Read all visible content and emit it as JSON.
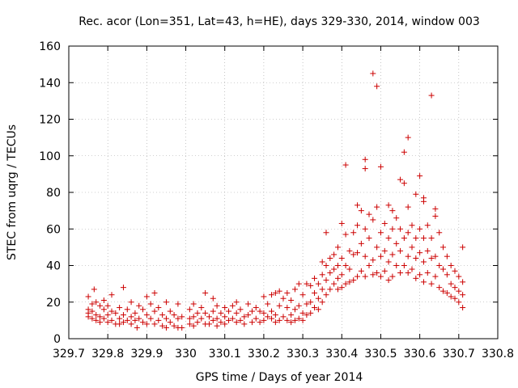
{
  "chart_data": {
    "type": "scatter",
    "title": "Rec. acor (Lon=351, Lat=43, h=HE), days 329-330, 2014, window 003",
    "xlabel": "GPS time / Days of year 2014",
    "ylabel": "STEC from uqrg / TECUs",
    "xlim": [
      329.7,
      330.8
    ],
    "ylim": [
      0,
      160
    ],
    "xticks": [
      329.7,
      329.8,
      329.9,
      330,
      330.1,
      330.2,
      330.3,
      330.4,
      330.5,
      330.6,
      330.7,
      330.8
    ],
    "xtick_labels": [
      "329.7",
      "329.8",
      "329.9",
      "330",
      "330.1",
      "330.2",
      "330.3",
      "330.4",
      "330.5",
      "330.6",
      "330.7",
      "330.8"
    ],
    "yticks": [
      0,
      20,
      40,
      60,
      80,
      100,
      120,
      140,
      160
    ],
    "ytick_labels": [
      "0",
      "20",
      "40",
      "60",
      "80",
      "100",
      "120",
      "140",
      "160"
    ],
    "grid": true,
    "marker": "+",
    "color": "#cc0000",
    "series": [
      {
        "name": "STEC",
        "points": [
          [
            329.75,
            23
          ],
          [
            329.75,
            16
          ],
          [
            329.75,
            14
          ],
          [
            329.75,
            12
          ],
          [
            329.76,
            19
          ],
          [
            329.76,
            15
          ],
          [
            329.76,
            11
          ],
          [
            329.765,
            27
          ],
          [
            329.77,
            20
          ],
          [
            329.77,
            13
          ],
          [
            329.77,
            10
          ],
          [
            329.78,
            18
          ],
          [
            329.78,
            12
          ],
          [
            329.78,
            9
          ],
          [
            329.79,
            21
          ],
          [
            329.79,
            16
          ],
          [
            329.79,
            11
          ],
          [
            329.8,
            18
          ],
          [
            329.8,
            13
          ],
          [
            329.8,
            9
          ],
          [
            329.81,
            24
          ],
          [
            329.81,
            15
          ],
          [
            329.81,
            10
          ],
          [
            329.82,
            14
          ],
          [
            329.82,
            8
          ],
          [
            329.83,
            17
          ],
          [
            329.83,
            11
          ],
          [
            329.83,
            8
          ],
          [
            329.84,
            28
          ],
          [
            329.84,
            13
          ],
          [
            329.84,
            9
          ],
          [
            329.85,
            16
          ],
          [
            329.85,
            10
          ],
          [
            329.86,
            20
          ],
          [
            329.86,
            12
          ],
          [
            329.86,
            8
          ],
          [
            329.87,
            14
          ],
          [
            329.87,
            10
          ],
          [
            329.875,
            6
          ],
          [
            329.88,
            18
          ],
          [
            329.88,
            11
          ],
          [
            329.89,
            16
          ],
          [
            329.89,
            9
          ],
          [
            329.9,
            23
          ],
          [
            329.9,
            13
          ],
          [
            329.9,
            8
          ],
          [
            329.91,
            19
          ],
          [
            329.91,
            11
          ],
          [
            329.92,
            25
          ],
          [
            329.92,
            15
          ],
          [
            329.92,
            8
          ],
          [
            329.93,
            17
          ],
          [
            329.93,
            10
          ],
          [
            329.94,
            13
          ],
          [
            329.94,
            7
          ],
          [
            329.95,
            20
          ],
          [
            329.95,
            11
          ],
          [
            329.95,
            6
          ],
          [
            329.96,
            15
          ],
          [
            329.96,
            9
          ],
          [
            329.97,
            13
          ],
          [
            329.97,
            7
          ],
          [
            329.98,
            19
          ],
          [
            329.98,
            11
          ],
          [
            329.98,
            6
          ],
          [
            329.99,
            12
          ],
          [
            329.99,
            6
          ],
          [
            330.01,
            16
          ],
          [
            330.01,
            11
          ],
          [
            330.01,
            8
          ],
          [
            330.02,
            19
          ],
          [
            330.02,
            12
          ],
          [
            330.02,
            7
          ],
          [
            330.03,
            14
          ],
          [
            330.03,
            9
          ],
          [
            330.04,
            17
          ],
          [
            330.04,
            11
          ],
          [
            330.05,
            25
          ],
          [
            330.05,
            14
          ],
          [
            330.05,
            8
          ],
          [
            330.06,
            12
          ],
          [
            330.06,
            8
          ],
          [
            330.07,
            22
          ],
          [
            330.07,
            15
          ],
          [
            330.07,
            10
          ],
          [
            330.08,
            18
          ],
          [
            330.08,
            11
          ],
          [
            330.08,
            7
          ],
          [
            330.09,
            14
          ],
          [
            330.09,
            9
          ],
          [
            330.1,
            17
          ],
          [
            330.1,
            12
          ],
          [
            330.1,
            8
          ],
          [
            330.11,
            15
          ],
          [
            330.11,
            10
          ],
          [
            330.12,
            18
          ],
          [
            330.12,
            11
          ],
          [
            330.13,
            20
          ],
          [
            330.13,
            14
          ],
          [
            330.13,
            9
          ],
          [
            330.14,
            16
          ],
          [
            330.14,
            10
          ],
          [
            330.15,
            12
          ],
          [
            330.15,
            8
          ],
          [
            330.16,
            19
          ],
          [
            330.16,
            13
          ],
          [
            330.17,
            15
          ],
          [
            330.17,
            9
          ],
          [
            330.18,
            17
          ],
          [
            330.18,
            11
          ],
          [
            330.19,
            15
          ],
          [
            330.19,
            9
          ],
          [
            330.2,
            23
          ],
          [
            330.2,
            14
          ],
          [
            330.2,
            10
          ],
          [
            330.21,
            19
          ],
          [
            330.21,
            12
          ],
          [
            330.22,
            24
          ],
          [
            330.22,
            15
          ],
          [
            330.22,
            11
          ],
          [
            330.23,
            25
          ],
          [
            330.23,
            13
          ],
          [
            330.23,
            9
          ],
          [
            330.24,
            26
          ],
          [
            330.24,
            18
          ],
          [
            330.24,
            10
          ],
          [
            330.25,
            22
          ],
          [
            330.25,
            12
          ],
          [
            330.26,
            25
          ],
          [
            330.26,
            17
          ],
          [
            330.26,
            10
          ],
          [
            330.27,
            21
          ],
          [
            330.27,
            13
          ],
          [
            330.27,
            9
          ],
          [
            330.28,
            27
          ],
          [
            330.28,
            16
          ],
          [
            330.28,
            10
          ],
          [
            330.29,
            30
          ],
          [
            330.29,
            18
          ],
          [
            330.29,
            11
          ],
          [
            330.3,
            24
          ],
          [
            330.3,
            14
          ],
          [
            330.3,
            10
          ],
          [
            330.31,
            30
          ],
          [
            330.31,
            19
          ],
          [
            330.31,
            13
          ],
          [
            330.32,
            29
          ],
          [
            330.32,
            20
          ],
          [
            330.32,
            14
          ],
          [
            330.33,
            33
          ],
          [
            330.33,
            25
          ],
          [
            330.33,
            17
          ],
          [
            330.34,
            30
          ],
          [
            330.34,
            22
          ],
          [
            330.34,
            16
          ],
          [
            330.35,
            42
          ],
          [
            330.35,
            35
          ],
          [
            330.35,
            27
          ],
          [
            330.35,
            20
          ],
          [
            330.36,
            58
          ],
          [
            330.36,
            40
          ],
          [
            330.36,
            32
          ],
          [
            330.36,
            24
          ],
          [
            330.37,
            44
          ],
          [
            330.37,
            36
          ],
          [
            330.37,
            27
          ],
          [
            330.38,
            46
          ],
          [
            330.38,
            38
          ],
          [
            330.38,
            30
          ],
          [
            330.39,
            50
          ],
          [
            330.39,
            40
          ],
          [
            330.39,
            33
          ],
          [
            330.39,
            27
          ],
          [
            330.4,
            63
          ],
          [
            330.4,
            44
          ],
          [
            330.4,
            35
          ],
          [
            330.4,
            28
          ],
          [
            330.41,
            95
          ],
          [
            330.41,
            57
          ],
          [
            330.41,
            40
          ],
          [
            330.41,
            30
          ],
          [
            330.42,
            48
          ],
          [
            330.42,
            38
          ],
          [
            330.42,
            31
          ],
          [
            330.43,
            58
          ],
          [
            330.43,
            46
          ],
          [
            330.43,
            32
          ],
          [
            330.44,
            73
          ],
          [
            330.44,
            62
          ],
          [
            330.44,
            47
          ],
          [
            330.44,
            34
          ],
          [
            330.45,
            70
          ],
          [
            330.45,
            52
          ],
          [
            330.45,
            37
          ],
          [
            330.46,
            98
          ],
          [
            330.46,
            93
          ],
          [
            330.46,
            60
          ],
          [
            330.46,
            45
          ],
          [
            330.46,
            34
          ],
          [
            330.47,
            68
          ],
          [
            330.47,
            55
          ],
          [
            330.47,
            40
          ],
          [
            330.48,
            145
          ],
          [
            330.48,
            65
          ],
          [
            330.48,
            43
          ],
          [
            330.48,
            35
          ],
          [
            330.49,
            138
          ],
          [
            330.49,
            72
          ],
          [
            330.49,
            50
          ],
          [
            330.49,
            36
          ],
          [
            330.5,
            94
          ],
          [
            330.5,
            58
          ],
          [
            330.5,
            45
          ],
          [
            330.5,
            34
          ],
          [
            330.51,
            63
          ],
          [
            330.51,
            48
          ],
          [
            330.51,
            37
          ],
          [
            330.52,
            73
          ],
          [
            330.52,
            55
          ],
          [
            330.52,
            42
          ],
          [
            330.52,
            32
          ],
          [
            330.53,
            70
          ],
          [
            330.53,
            60
          ],
          [
            330.53,
            46
          ],
          [
            330.53,
            34
          ],
          [
            330.54,
            66
          ],
          [
            330.54,
            52
          ],
          [
            330.54,
            40
          ],
          [
            330.55,
            87
          ],
          [
            330.55,
            60
          ],
          [
            330.55,
            48
          ],
          [
            330.55,
            36
          ],
          [
            330.56,
            85
          ],
          [
            330.56,
            102
          ],
          [
            330.56,
            55
          ],
          [
            330.56,
            40
          ],
          [
            330.57,
            110
          ],
          [
            330.57,
            72
          ],
          [
            330.57,
            58
          ],
          [
            330.57,
            45
          ],
          [
            330.57,
            36
          ],
          [
            330.58,
            62
          ],
          [
            330.58,
            50
          ],
          [
            330.58,
            38
          ],
          [
            330.59,
            79
          ],
          [
            330.59,
            55
          ],
          [
            330.59,
            44
          ],
          [
            330.59,
            33
          ],
          [
            330.6,
            89
          ],
          [
            330.6,
            60
          ],
          [
            330.6,
            47
          ],
          [
            330.6,
            35
          ],
          [
            330.61,
            77
          ],
          [
            330.61,
            75
          ],
          [
            330.61,
            55
          ],
          [
            330.61,
            42
          ],
          [
            330.61,
            31
          ],
          [
            330.62,
            62
          ],
          [
            330.62,
            48
          ],
          [
            330.62,
            36
          ],
          [
            330.63,
            133
          ],
          [
            330.63,
            55
          ],
          [
            330.63,
            44
          ],
          [
            330.63,
            30
          ],
          [
            330.64,
            71
          ],
          [
            330.64,
            67
          ],
          [
            330.64,
            45
          ],
          [
            330.64,
            34
          ],
          [
            330.65,
            58
          ],
          [
            330.65,
            40
          ],
          [
            330.65,
            28
          ],
          [
            330.66,
            50
          ],
          [
            330.66,
            38
          ],
          [
            330.66,
            26
          ],
          [
            330.67,
            45
          ],
          [
            330.67,
            35
          ],
          [
            330.67,
            25
          ],
          [
            330.68,
            40
          ],
          [
            330.68,
            30
          ],
          [
            330.68,
            23
          ],
          [
            330.69,
            37
          ],
          [
            330.69,
            28
          ],
          [
            330.69,
            22
          ],
          [
            330.7,
            34
          ],
          [
            330.7,
            26
          ],
          [
            330.7,
            20
          ],
          [
            330.71,
            50
          ],
          [
            330.71,
            31
          ],
          [
            330.71,
            24
          ],
          [
            330.71,
            17
          ]
        ]
      }
    ]
  }
}
